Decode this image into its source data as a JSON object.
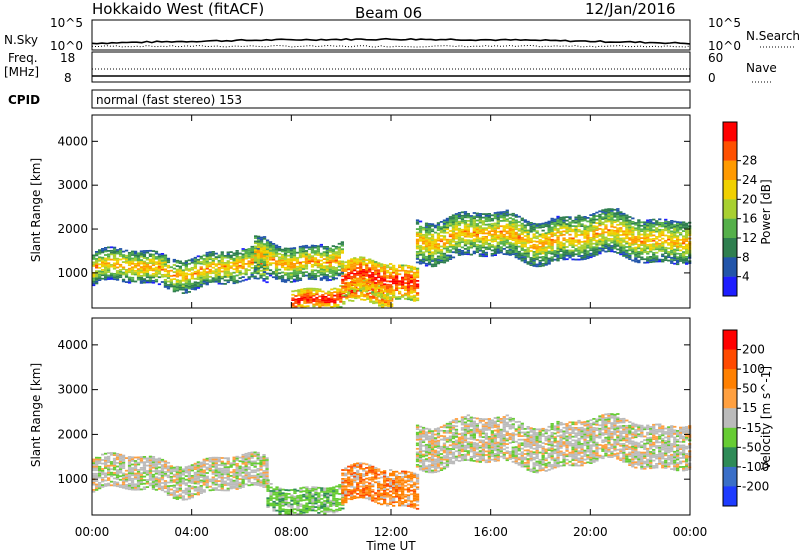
{
  "header": {
    "title": "Hokkaido West (fitACF)",
    "beam": "Beam 06",
    "date": "12/Jan/2016"
  },
  "top_panels": {
    "nsky_label": "N.Sky",
    "nsearch_label": "N.Search",
    "nsky_ticks": [
      "10^5",
      "10^0"
    ],
    "nsearch_ticks": [
      "10^5",
      "10^0"
    ],
    "freq_label": "Freq.",
    "freq_unit": "[MHz]",
    "freq_ticks": [
      "18",
      "8"
    ],
    "nave_label": "Nave",
    "nave_ticks": [
      "60",
      "0"
    ],
    "cpid_label": "CPID",
    "cpid_text": "normal (fast stereo) 153"
  },
  "axes": {
    "x_ticks": [
      "00:00",
      "04:00",
      "08:00",
      "12:00",
      "16:00",
      "20:00",
      "00:00"
    ],
    "xlabel": "Time UT",
    "ylabel": "Slant Range [km]",
    "y_ticks": [
      "1000",
      "2000",
      "3000",
      "4000"
    ]
  },
  "colorbars": {
    "power": {
      "label": "Power [dB]",
      "ticks": [
        "4",
        "8",
        "12",
        "16",
        "20",
        "24",
        "28"
      ],
      "colors": [
        "#1e1eff",
        "#2255aa",
        "#2f7f4f",
        "#55b04a",
        "#a8d030",
        "#f0d000",
        "#ff9a00",
        "#ff5000",
        "#ff0000"
      ]
    },
    "velocity": {
      "label": "Velocity [m s^-1]",
      "ticks": [
        "200",
        "100",
        "50",
        "15",
        "-15",
        "-50",
        "-100",
        "-200"
      ],
      "colors": [
        "#1e3cff",
        "#3a6fc8",
        "#2e8b57",
        "#66cc33",
        "#bbbbbb",
        "#ffa040",
        "#ff8000",
        "#ff4a00",
        "#ff0000"
      ]
    }
  },
  "chart_data": [
    {
      "type": "heatmap",
      "title": "Power",
      "xlabel": "Time UT",
      "ylabel": "Slant Range [km]",
      "xlim": [
        0,
        24
      ],
      "ylim": [
        200,
        4600
      ],
      "colorbar_label": "Power [dB]",
      "bands": [
        {
          "t": [
            0,
            7
          ],
          "r_low": 700,
          "r_high": 1450,
          "level": "mid"
        },
        {
          "t": [
            6.5,
            10
          ],
          "r_low": 900,
          "r_high": 1700,
          "level": "mid"
        },
        {
          "t": [
            8,
            12
          ],
          "r_low": 200,
          "r_high": 700,
          "level": "high"
        },
        {
          "t": [
            10,
            13
          ],
          "r_low": 400,
          "r_high": 1200,
          "level": "high"
        },
        {
          "t": [
            13,
            24
          ],
          "r_low": 1300,
          "r_high": 2300,
          "level": "mid"
        }
      ]
    },
    {
      "type": "heatmap",
      "title": "Velocity",
      "xlabel": "Time UT",
      "ylabel": "Slant Range [km]",
      "xlim": [
        0,
        24
      ],
      "ylim": [
        200,
        4600
      ],
      "colorbar_label": "Velocity [m s^-1]",
      "bands": [
        {
          "t": [
            0,
            7
          ],
          "r_low": 700,
          "r_high": 1450,
          "v": "near-zero"
        },
        {
          "t": [
            7,
            10
          ],
          "r_low": 300,
          "r_high": 900,
          "v": "positive"
        },
        {
          "t": [
            10,
            13
          ],
          "r_low": 400,
          "r_high": 1200,
          "v": "negative"
        },
        {
          "t": [
            13,
            24
          ],
          "r_low": 1300,
          "r_high": 2300,
          "v": "near-zero"
        }
      ]
    }
  ]
}
